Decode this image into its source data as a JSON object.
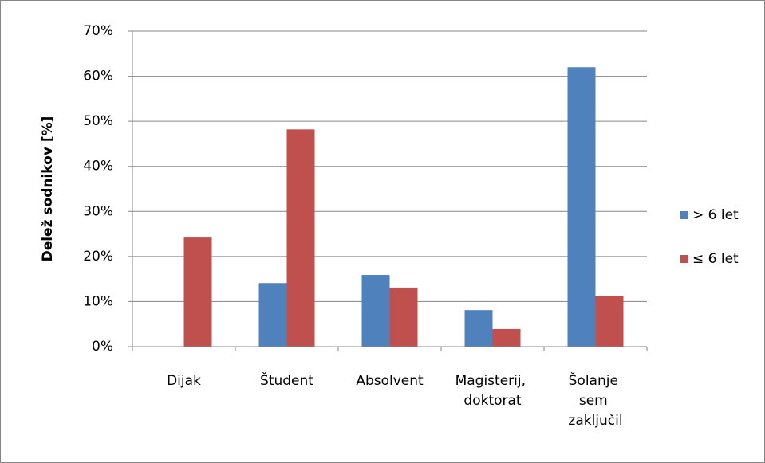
{
  "chart_data": {
    "type": "bar",
    "ylabel": "Delež sodnikov [%]",
    "categories": [
      "Dijak",
      "Študent",
      "Absolvent",
      "Magisterij, doktorat",
      "Šolanje sem zaključil"
    ],
    "series": [
      {
        "name": "> 6 let",
        "color": "#4f81bd",
        "values": [
          0,
          14.1,
          15.9,
          8.1,
          62.0
        ]
      },
      {
        "name": "≤ 6 let",
        "color": "#c0504d",
        "values": [
          24.2,
          48.2,
          13.1,
          3.9,
          11.3
        ]
      }
    ],
    "ylim": [
      0,
      70
    ],
    "yticks": [
      {
        "value": 0,
        "label": "0%"
      },
      {
        "value": 10,
        "label": "10%"
      },
      {
        "value": 20,
        "label": "20%"
      },
      {
        "value": 30,
        "label": "30%"
      },
      {
        "value": 40,
        "label": "40%"
      },
      {
        "value": 50,
        "label": "50%"
      },
      {
        "value": 60,
        "label": "60%"
      },
      {
        "value": 70,
        "label": "70%"
      }
    ],
    "grid": true,
    "legend": "right"
  }
}
